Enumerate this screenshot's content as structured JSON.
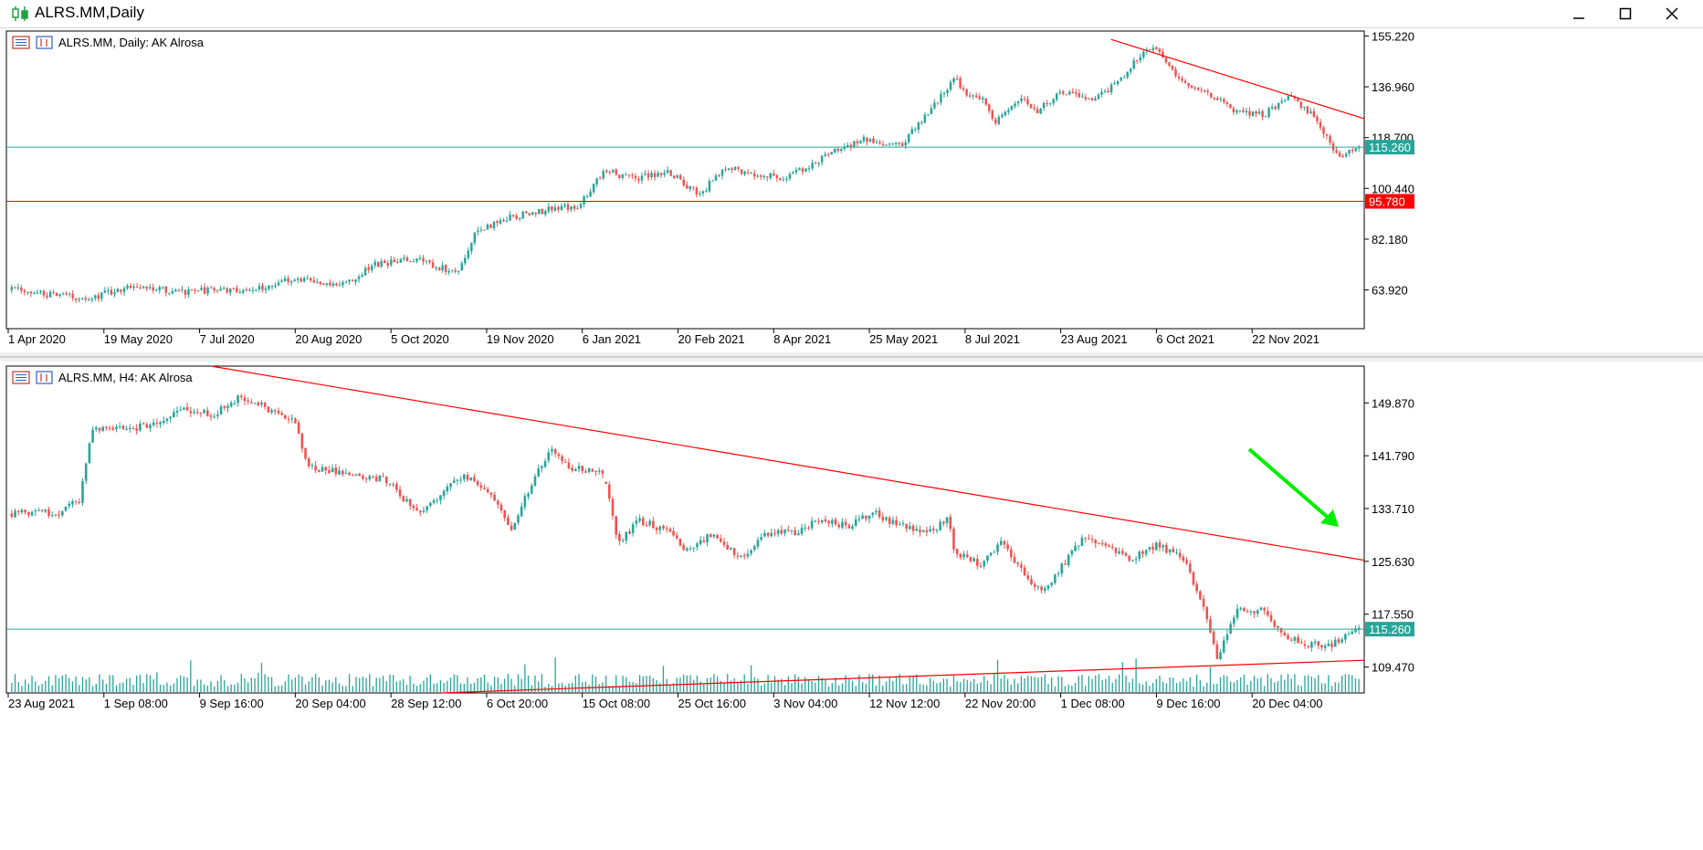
{
  "window": {
    "title": "ALRS.MM,Daily",
    "icons": {
      "app": "candlestick-chart-icon",
      "minimize": "minimize-icon",
      "maximize": "maximize-icon",
      "close": "close-icon"
    }
  },
  "colors": {
    "bull": "#26a69a",
    "bear": "#ef5350",
    "resistance": "#ff0000",
    "current_price": "#26a69a",
    "grid_text": "#000000"
  },
  "chart_data": [
    {
      "type": "candlestick",
      "title": "ALRS.MM, Daily:  AK Alrosa",
      "timeframe": "Daily",
      "ylim": [
        50,
        157
      ],
      "y_ticks": [
        "155.220",
        "136.960",
        "118.700",
        "100.440",
        "82.180",
        "63.920"
      ],
      "x_labels": [
        "1 Apr 2020",
        "19 May 2020",
        "7 Jul 2020",
        "20 Aug 2020",
        "5 Oct 2020",
        "19 Nov 2020",
        "6 Jan 2021",
        "20 Feb 2021",
        "8 Apr 2021",
        "25 May 2021",
        "8 Jul 2021",
        "23 Aug 2021",
        "6 Oct 2021",
        "22 Nov 2021"
      ],
      "price_path": [
        [
          0,
          64
        ],
        [
          0.03,
          62
        ],
        [
          0.06,
          61
        ],
        [
          0.09,
          66
        ],
        [
          0.12,
          63
        ],
        [
          0.15,
          64
        ],
        [
          0.18,
          64
        ],
        [
          0.21,
          68
        ],
        [
          0.23,
          66
        ],
        [
          0.25,
          67
        ],
        [
          0.27,
          73
        ],
        [
          0.3,
          75
        ],
        [
          0.33,
          70
        ],
        [
          0.345,
          85
        ],
        [
          0.37,
          90
        ],
        [
          0.4,
          93
        ],
        [
          0.42,
          94
        ],
        [
          0.44,
          107
        ],
        [
          0.46,
          104
        ],
        [
          0.49,
          106
        ],
        [
          0.51,
          98
        ],
        [
          0.53,
          108
        ],
        [
          0.55,
          106
        ],
        [
          0.575,
          104
        ],
        [
          0.6,
          111
        ],
        [
          0.63,
          118
        ],
        [
          0.66,
          116
        ],
        [
          0.69,
          134
        ],
        [
          0.7,
          140
        ],
        [
          0.71,
          133
        ],
        [
          0.72,
          133
        ],
        [
          0.73,
          124
        ],
        [
          0.75,
          134
        ],
        [
          0.76,
          128
        ],
        [
          0.78,
          135
        ],
        [
          0.8,
          132
        ],
        [
          0.82,
          138
        ],
        [
          0.84,
          150
        ],
        [
          0.848,
          152
        ],
        [
          0.87,
          138
        ],
        [
          0.89,
          134
        ],
        [
          0.91,
          128
        ],
        [
          0.93,
          127
        ],
        [
          0.95,
          134
        ],
        [
          0.97,
          124
        ],
        [
          0.985,
          112
        ],
        [
          1.0,
          115
        ]
      ],
      "horizontal_lines": [
        {
          "price": 115.26,
          "label": "115.260",
          "color": "#26a69a"
        },
        {
          "price": 95.78,
          "label": "95.780",
          "color": "#ff0000"
        }
      ],
      "trendlines": [
        {
          "from": [
            "23 Aug 2021",
            154
          ],
          "to": [
            "end",
            125.5
          ],
          "color": "#ff0000"
        }
      ]
    },
    {
      "type": "candlestick",
      "title": "ALRS.MM, H4:  AK Alrosa",
      "timeframe": "H4",
      "ylim": [
        105.5,
        155.5
      ],
      "y_ticks": [
        "149.870",
        "141.790",
        "133.710",
        "125.630",
        "117.550",
        "109.470"
      ],
      "x_labels": [
        "23 Aug 2021",
        "1 Sep 08:00",
        "9 Sep 16:00",
        "20 Sep 04:00",
        "28 Sep 12:00",
        "6 Oct 20:00",
        "15 Oct 08:00",
        "25 Oct 16:00",
        "3 Nov 04:00",
        "12 Nov 12:00",
        "22 Nov 20:00",
        "1 Dec 08:00",
        "9 Dec 16:00",
        "20 Dec 04:00"
      ],
      "price_path": [
        [
          0,
          133
        ],
        [
          0.035,
          133
        ],
        [
          0.05,
          135
        ],
        [
          0.06,
          146
        ],
        [
          0.09,
          146
        ],
        [
          0.11,
          147
        ],
        [
          0.13,
          149
        ],
        [
          0.15,
          148
        ],
        [
          0.17,
          151
        ],
        [
          0.19,
          149
        ],
        [
          0.21,
          147
        ],
        [
          0.22,
          140
        ],
        [
          0.25,
          139
        ],
        [
          0.28,
          138
        ],
        [
          0.3,
          133
        ],
        [
          0.32,
          136
        ],
        [
          0.335,
          139
        ],
        [
          0.36,
          135
        ],
        [
          0.37,
          130
        ],
        [
          0.385,
          137
        ],
        [
          0.4,
          143
        ],
        [
          0.415,
          140
        ],
        [
          0.44,
          139
        ],
        [
          0.45,
          128
        ],
        [
          0.465,
          132
        ],
        [
          0.49,
          130
        ],
        [
          0.5,
          127
        ],
        [
          0.52,
          130
        ],
        [
          0.54,
          126
        ],
        [
          0.56,
          130
        ],
        [
          0.58,
          130
        ],
        [
          0.6,
          132
        ],
        [
          0.62,
          131
        ],
        [
          0.64,
          133
        ],
        [
          0.66,
          131
        ],
        [
          0.68,
          130
        ],
        [
          0.695,
          132
        ],
        [
          0.7,
          127
        ],
        [
          0.72,
          125
        ],
        [
          0.735,
          129
        ],
        [
          0.75,
          124
        ],
        [
          0.765,
          121
        ],
        [
          0.78,
          125
        ],
        [
          0.795,
          129
        ],
        [
          0.81,
          128
        ],
        [
          0.83,
          126
        ],
        [
          0.85,
          128
        ],
        [
          0.87,
          126
        ],
        [
          0.885,
          118
        ],
        [
          0.895,
          111
        ],
        [
          0.91,
          118
        ],
        [
          0.93,
          118
        ],
        [
          0.945,
          114
        ],
        [
          0.96,
          113
        ],
        [
          0.98,
          113
        ],
        [
          1.0,
          115
        ]
      ],
      "gap_after_fraction": 0.44,
      "horizontal_lines": [
        {
          "price": 115.26,
          "label": "115.260",
          "color": "#26a69a"
        }
      ],
      "trendlines": [
        {
          "from": [
            "start",
            155.5
          ],
          "to": [
            "end",
            125.8
          ],
          "color": "#ff0000"
        },
        {
          "from": [
            "28 Sep 12:00",
            105.5
          ],
          "to": [
            "end",
            110.5
          ],
          "color": "#ff0000"
        }
      ],
      "annotations": [
        {
          "type": "arrow",
          "direction": "down-right",
          "color": "#00ee00"
        }
      ],
      "volume": true
    }
  ]
}
